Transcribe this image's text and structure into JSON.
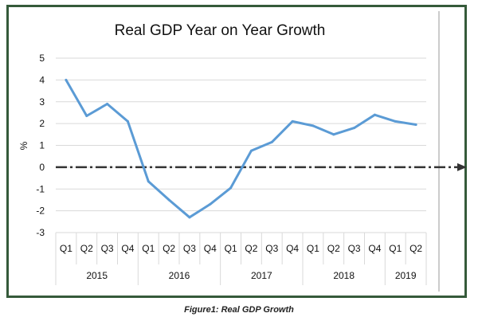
{
  "caption": "Figure1: Real GDP Growth",
  "chart_data": {
    "type": "line",
    "title": "Real GDP Year on Year Growth",
    "ylabel": "%",
    "xlabel": "",
    "ylim": [
      -3,
      5
    ],
    "yticks": [
      5,
      4,
      3,
      2,
      1,
      0,
      -1,
      -2,
      -3
    ],
    "grid": true,
    "categories": [
      "Q1",
      "Q2",
      "Q3",
      "Q4",
      "Q1",
      "Q2",
      "Q3",
      "Q4",
      "Q1",
      "Q2",
      "Q3",
      "Q4",
      "Q1",
      "Q2",
      "Q3",
      "Q4",
      "Q1",
      "Q2"
    ],
    "years": [
      {
        "label": "2015",
        "start": 0,
        "end": 3
      },
      {
        "label": "2016",
        "start": 4,
        "end": 7
      },
      {
        "label": "2017",
        "start": 8,
        "end": 11
      },
      {
        "label": "2018",
        "start": 12,
        "end": 15
      },
      {
        "label": "2019",
        "start": 16,
        "end": 17
      }
    ],
    "series": [
      {
        "values": [
          4.0,
          2.35,
          2.9,
          2.1,
          -0.65,
          -1.5,
          -2.3,
          -1.7,
          -0.95,
          0.75,
          1.15,
          2.1,
          1.9,
          1.5,
          1.8,
          2.4,
          2.1,
          1.95
        ],
        "color": "#5b9bd5"
      }
    ],
    "zero_line_color": "#333333"
  }
}
